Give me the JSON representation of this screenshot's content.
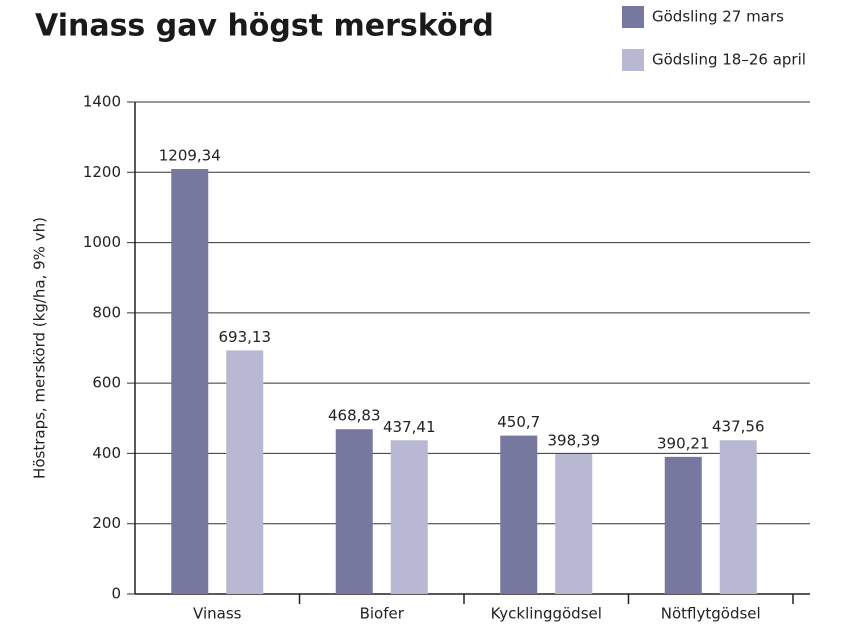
{
  "chart_data": {
    "type": "bar",
    "title": "Vinass gav högst merskörd",
    "y_label": "Höstraps, merskörd (kg/ha, 9% vh)",
    "categories": [
      "Vinass",
      "Biofer",
      "Kycklinggödsel",
      "Nötflytgödsel"
    ],
    "series": [
      {
        "name": "Gödsling 27 mars",
        "color": "#77789f",
        "values": [
          1209.34,
          468.83,
          450.7,
          390.21
        ],
        "value_labels": [
          "1209,34",
          "468,83",
          "450,7",
          "390,21"
        ]
      },
      {
        "name": "Gödsling 18–26 april",
        "color": "#b9b8d2",
        "values": [
          693.13,
          437.41,
          398.39,
          437.56
        ],
        "value_labels": [
          "693,13",
          "437,41",
          "398,39",
          "437,56"
        ]
      }
    ],
    "ylim": [
      0,
      1400
    ],
    "yticks": [
      0,
      200,
      400,
      600,
      800,
      1000,
      1200,
      1400
    ],
    "grid": true,
    "legend": "top-right"
  }
}
